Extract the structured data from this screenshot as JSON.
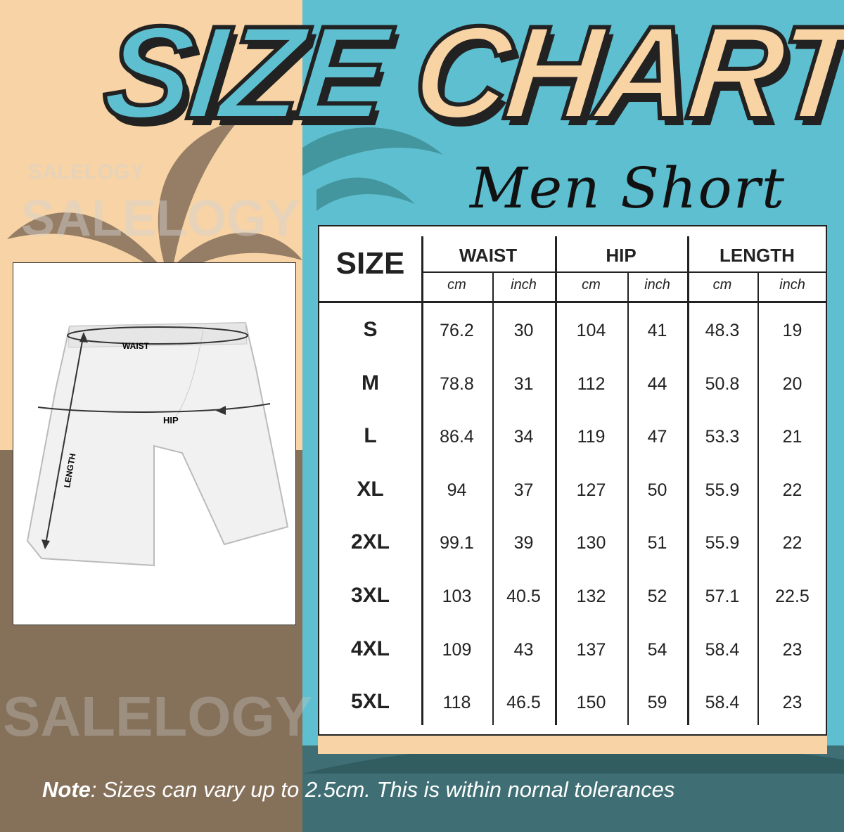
{
  "title": {
    "word1": "SIZE",
    "word2": "CHART",
    "subtitle": "Men Short"
  },
  "watermark": "SALELOGY",
  "diagram": {
    "labels": {
      "waist": "WAIST",
      "hip": "HIP",
      "length": "LENGTH"
    }
  },
  "table": {
    "size_header": "SIZE",
    "groups": [
      "WAIST",
      "HIP",
      "LENGTH"
    ],
    "units": [
      "cm",
      "inch",
      "cm",
      "inch",
      "cm",
      "inch"
    ],
    "rows": [
      {
        "size": "S",
        "values": [
          "76.2",
          "30",
          "104",
          "41",
          "48.3",
          "19"
        ]
      },
      {
        "size": "M",
        "values": [
          "78.8",
          "31",
          "112",
          "44",
          "50.8",
          "20"
        ]
      },
      {
        "size": "L",
        "values": [
          "86.4",
          "34",
          "119",
          "47",
          "53.3",
          "21"
        ]
      },
      {
        "size": "XL",
        "values": [
          "94",
          "37",
          "127",
          "50",
          "55.9",
          "22"
        ]
      },
      {
        "size": "2XL",
        "values": [
          "99.1",
          "39",
          "130",
          "51",
          "55.9",
          "22"
        ]
      },
      {
        "size": "3XL",
        "values": [
          "103",
          "40.5",
          "132",
          "52",
          "57.1",
          "22.5"
        ]
      },
      {
        "size": "4XL",
        "values": [
          "109",
          "43",
          "137",
          "54",
          "58.4",
          "23"
        ]
      },
      {
        "size": "5XL",
        "values": [
          "118",
          "46.5",
          "150",
          "59",
          "58.4",
          "23"
        ]
      }
    ]
  },
  "note": {
    "label": "Note",
    "text": ": Sizes can vary up to 2.5cm. This is within nornal tolerances"
  },
  "colors": {
    "tan": "#f7d3a5",
    "brown": "#85705a",
    "teal": "#5dbfd0",
    "dark_teal": "#3f6f74"
  }
}
